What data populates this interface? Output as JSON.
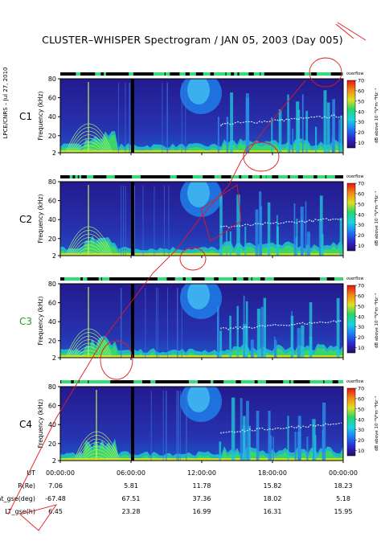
{
  "title": "CLUSTER–WHISPER Spectrogram / JAN 05, 2003 (Day 005)",
  "side_note": "LPCE/CNRS – Jul 27, 2010",
  "chart_data": [
    {
      "type": "heatmap",
      "panel": "C1",
      "label_color": "#000000",
      "ylabel": "Frequency (kHz)",
      "yticks": [
        2,
        20,
        40,
        60,
        80
      ],
      "ylim": [
        2,
        80
      ],
      "xlim": [
        "00:00:00",
        "00:00:00"
      ],
      "colorbar_label": "dB above 10⁻⁸V²m⁻²Hz⁻¹",
      "colorbar_ticks": [
        10,
        20,
        30,
        40,
        50,
        60,
        70
      ],
      "colorbar_top": "overflow"
    },
    {
      "type": "heatmap",
      "panel": "C2",
      "label_color": "#000000",
      "ylabel": "Frequency (kHz)",
      "yticks": [
        2,
        20,
        40,
        60,
        80
      ],
      "ylim": [
        2,
        80
      ],
      "xlim": [
        "00:00:00",
        "00:00:00"
      ],
      "colorbar_label": "dB above 10⁻⁸V²m⁻²Hz⁻¹",
      "colorbar_ticks": [
        10,
        20,
        30,
        40,
        50,
        60,
        70
      ],
      "colorbar_top": "overflow"
    },
    {
      "type": "heatmap",
      "panel": "C3",
      "label_color": "#1fa02a",
      "ylabel": "Frequency (kHz)",
      "yticks": [
        2,
        20,
        40,
        60,
        80
      ],
      "ylim": [
        2,
        80
      ],
      "xlim": [
        "00:00:00",
        "00:00:00"
      ],
      "colorbar_label": "dB above 10⁻⁸V²m⁻²Hz⁻¹",
      "colorbar_ticks": [
        10,
        20,
        30,
        40,
        50,
        60,
        70
      ],
      "colorbar_top": "overflow"
    },
    {
      "type": "heatmap",
      "panel": "C4",
      "label_color": "#000000",
      "ylabel": "Frequency (kHz)",
      "yticks": [
        2,
        20,
        40,
        60,
        80
      ],
      "ylim": [
        2,
        80
      ],
      "xlim": [
        "00:00:00",
        "00:00:00"
      ],
      "colorbar_label": "dB above 10⁻⁸V²m⁻²Hz⁻¹",
      "colorbar_ticks": [
        10,
        20,
        30,
        40,
        50,
        60,
        70
      ],
      "colorbar_top": "overflow"
    }
  ],
  "ephemeris": {
    "x_labels": [
      "00:00:00",
      "06:00:00",
      "12:00:00",
      "18:00:00",
      "00:00:00"
    ],
    "rows": [
      {
        "label": "UT",
        "values": []
      },
      {
        "label": "R(Re)",
        "values": [
          "7.06",
          "5.81",
          "11.78",
          "15.82",
          "18.23"
        ]
      },
      {
        "label": "Lat_gse(deg)",
        "values": [
          "-67.48",
          "67.51",
          "37.36",
          "18.02",
          "5.18"
        ]
      },
      {
        "label": "LT_gse(h)",
        "values": [
          "6.45",
          "23.28",
          "16.99",
          "16.31",
          "15.95"
        ]
      }
    ]
  },
  "colors": {
    "background": "#2a1a8c",
    "overflow": "#1a1a1a",
    "annotation": "#e21b1b",
    "bar_black": "#000000",
    "bar_green": "#33dd77"
  }
}
